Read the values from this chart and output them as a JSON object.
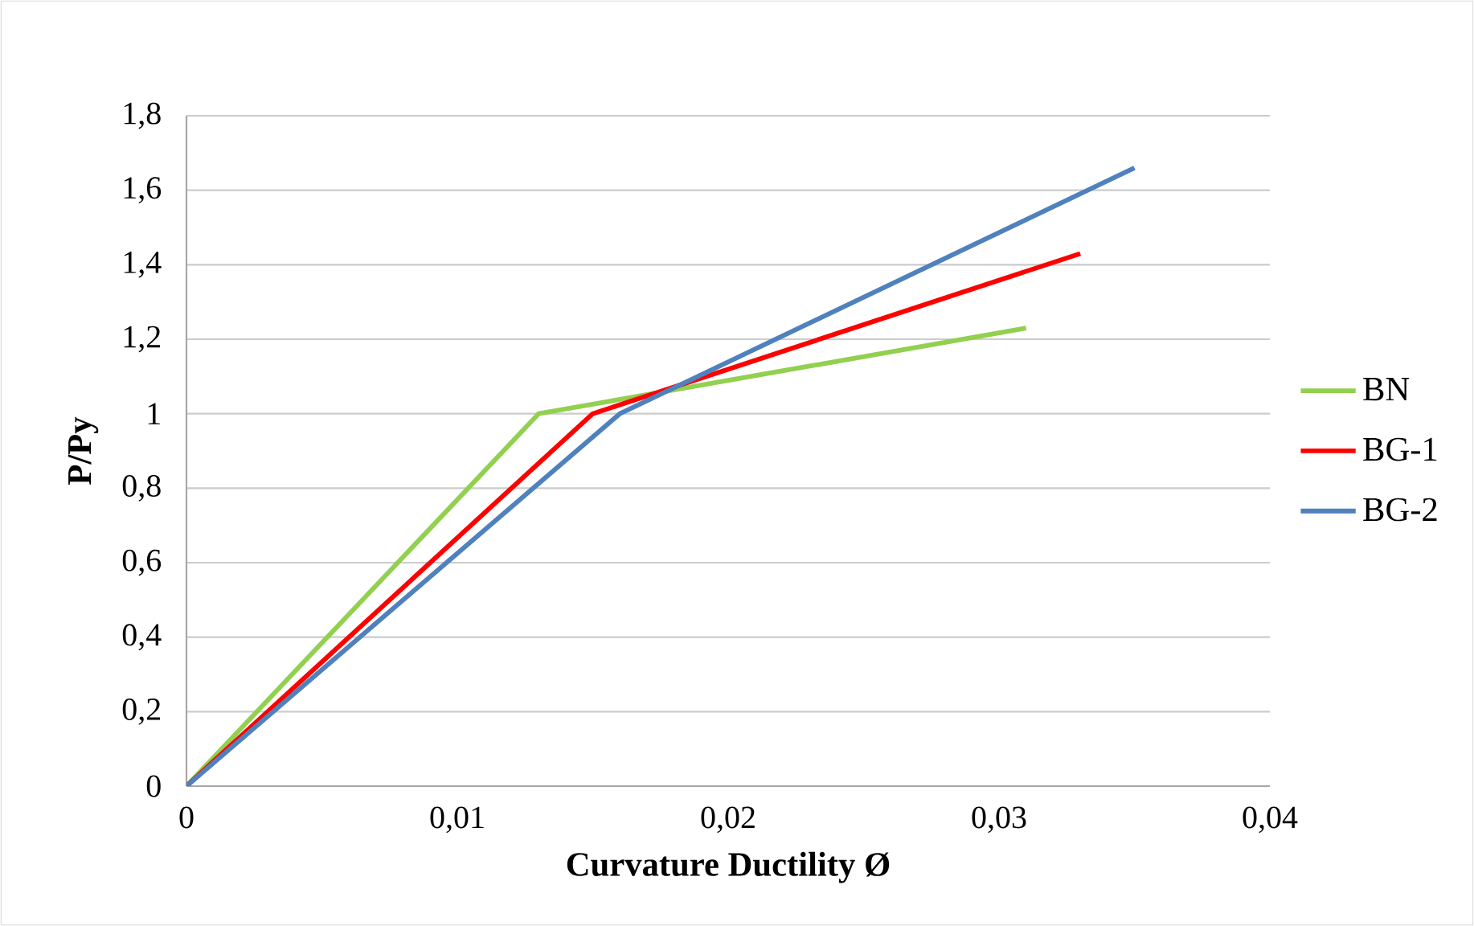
{
  "chart_data": {
    "type": "line",
    "xlabel": "Curvature Ductility Ø",
    "ylabel": "P/Py",
    "xlim": [
      0,
      0.04
    ],
    "ylim": [
      0,
      1.8
    ],
    "xticks": [
      0,
      {
        "value": 0.01,
        "label": "0,01"
      },
      {
        "value": 0.02,
        "label": "0,02"
      },
      {
        "value": 0.03,
        "label": "0,03"
      },
      {
        "value": 0.04,
        "label": "0,04"
      }
    ],
    "yticks": [
      0,
      {
        "value": 0.2,
        "label": "0,2"
      },
      {
        "value": 0.4,
        "label": "0,4"
      },
      {
        "value": 0.6,
        "label": "0,6"
      },
      {
        "value": 0.8,
        "label": "0,8"
      },
      1,
      {
        "value": 1.2,
        "label": "1,2"
      },
      {
        "value": 1.4,
        "label": "1,4"
      },
      {
        "value": 1.6,
        "label": "1,6"
      },
      {
        "value": 1.8,
        "label": "1,8"
      }
    ],
    "grid": "y",
    "legend": "right",
    "marker": "none",
    "line_style": "solid",
    "series": [
      {
        "name": "BN",
        "color": "#92d050",
        "x": [
          0,
          0.013,
          0.031
        ],
        "values": [
          0,
          1,
          1.23
        ]
      },
      {
        "name": "BG-1",
        "color": "#ff0000",
        "x": [
          0,
          0.015,
          0.033
        ],
        "values": [
          0,
          1,
          1.43
        ]
      },
      {
        "name": "BG-2",
        "color": "#4f81bd",
        "x": [
          0,
          0.016,
          0.035
        ],
        "values": [
          0,
          1,
          1.66
        ]
      }
    ]
  }
}
